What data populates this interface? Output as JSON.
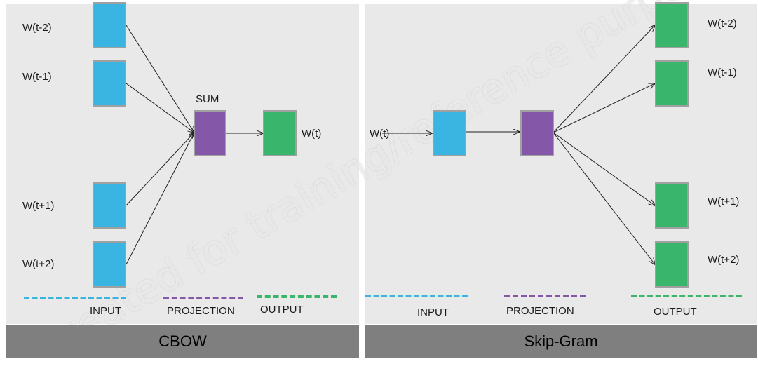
{
  "cbow": {
    "title": "CBOW",
    "context_labels": [
      "W(t-2)",
      "W(t-1)",
      "W(t+1)",
      "W(t+2)"
    ],
    "sum_label": "SUM",
    "output_label": "W(t)",
    "legend": {
      "input": "INPUT",
      "projection": "PROJECTION",
      "output": "OUTPUT"
    }
  },
  "skipgram": {
    "title": "Skip-Gram",
    "input_label": "W(t)",
    "output_labels": [
      "W(t-2)",
      "W(t-1)",
      "W(t+1)",
      "W(t+2)"
    ],
    "legend": {
      "input": "INPUT",
      "projection": "PROJECTION",
      "output": "OUTPUT"
    }
  },
  "watermark": "Created for training/reference purposes",
  "colors": {
    "input": "#3ab5e2",
    "projection": "#8457a8",
    "output": "#3ab56c",
    "panel": "#e9e9e9",
    "footer": "#7f7f7f"
  }
}
